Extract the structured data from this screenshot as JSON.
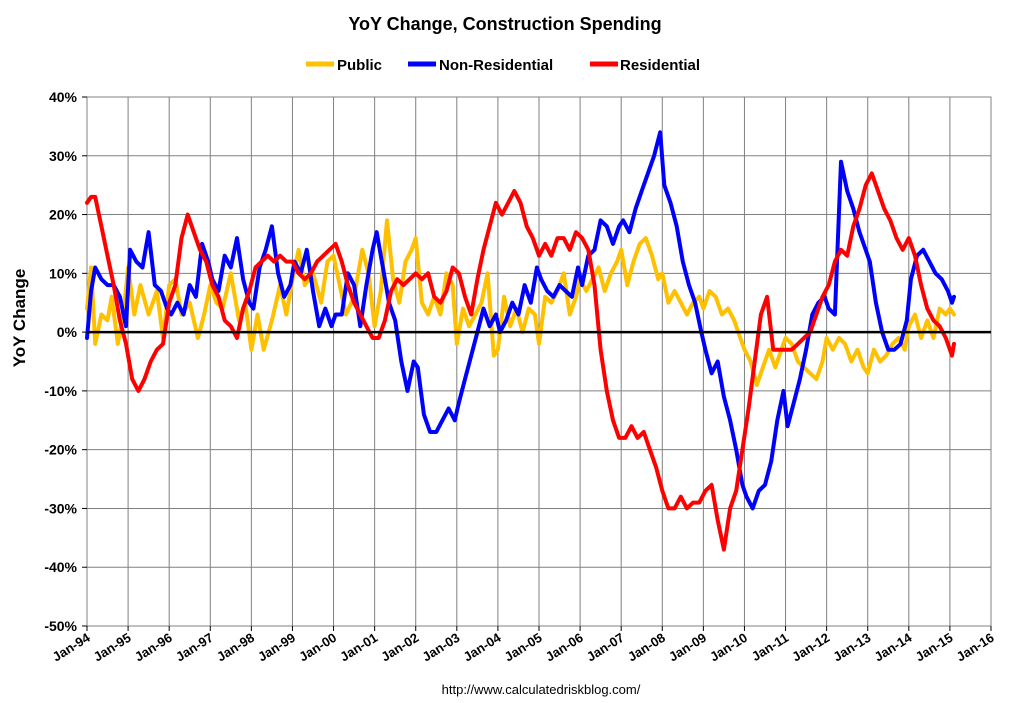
{
  "chart_data": {
    "type": "line",
    "title": "YoY Change,  Construction Spending",
    "ylabel": "YoY Change",
    "xlabel": "",
    "source": "http://www.calculatedriskblog.com/",
    "ylim": [
      -50,
      40
    ],
    "yticks": [
      40,
      30,
      20,
      10,
      0,
      -10,
      -20,
      -30,
      -40,
      -50
    ],
    "ytick_labels": [
      "40%",
      "30%",
      "20%",
      "10%",
      "0%",
      "-10%",
      "-20%",
      "-30%",
      "-40%",
      "-50%"
    ],
    "xlim": [
      1994,
      2016
    ],
    "xticks": [
      1994,
      1995,
      1996,
      1997,
      1998,
      1999,
      2000,
      2001,
      2002,
      2003,
      2004,
      2005,
      2006,
      2007,
      2008,
      2009,
      2010,
      2011,
      2012,
      2013,
      2014,
      2015,
      2016
    ],
    "xtick_labels": [
      "Jan-94",
      "Jan-95",
      "Jan-96",
      "Jan-97",
      "Jan-98",
      "Jan-99",
      "Jan-00",
      "Jan-01",
      "Jan-02",
      "Jan-03",
      "Jan-04",
      "Jan-05",
      "Jan-06",
      "Jan-07",
      "Jan-08",
      "Jan-09",
      "Jan-10",
      "Jan-11",
      "Jan-12",
      "Jan-13",
      "Jan-14",
      "Jan-15",
      "Jan-16"
    ],
    "grid": true,
    "legend_position": "top-center",
    "series": [
      {
        "name": "Public",
        "color": "#FFC000",
        "x": [
          1994.0,
          1994.1,
          1994.2,
          1994.35,
          1994.5,
          1994.6,
          1994.75,
          1994.9,
          1995.0,
          1995.15,
          1995.3,
          1995.5,
          1995.7,
          1995.85,
          1996.0,
          1996.15,
          1996.3,
          1996.5,
          1996.7,
          1996.85,
          1997.0,
          1997.15,
          1997.3,
          1997.5,
          1997.7,
          1997.85,
          1998.0,
          1998.15,
          1998.3,
          1998.5,
          1998.7,
          1998.85,
          1999.0,
          1999.15,
          1999.3,
          1999.5,
          1999.7,
          1999.85,
          2000.0,
          2000.15,
          2000.3,
          2000.5,
          2000.7,
          2000.85,
          2001.0,
          2001.15,
          2001.3,
          2001.45,
          2001.6,
          2001.75,
          2001.9,
          2002.0,
          2002.15,
          2002.3,
          2002.45,
          2002.6,
          2002.75,
          2002.9,
          2003.0,
          2003.15,
          2003.3,
          2003.45,
          2003.6,
          2003.75,
          2003.9,
          2004.0,
          2004.15,
          2004.3,
          2004.45,
          2004.6,
          2004.75,
          2004.9,
          2005.0,
          2005.15,
          2005.3,
          2005.45,
          2005.6,
          2005.75,
          2005.9,
          2006.0,
          2006.15,
          2006.3,
          2006.45,
          2006.6,
          2006.75,
          2006.9,
          2007.0,
          2007.15,
          2007.3,
          2007.45,
          2007.6,
          2007.75,
          2007.9,
          2008.0,
          2008.15,
          2008.3,
          2008.45,
          2008.6,
          2008.75,
          2008.9,
          2009.0,
          2009.15,
          2009.3,
          2009.45,
          2009.6,
          2009.75,
          2009.9,
          2010.0,
          2010.15,
          2010.3,
          2010.45,
          2010.6,
          2010.75,
          2010.9,
          2011.0,
          2011.15,
          2011.3,
          2011.45,
          2011.6,
          2011.75,
          2011.9,
          2012.0,
          2012.15,
          2012.3,
          2012.45,
          2012.6,
          2012.75,
          2012.9,
          2013.0,
          2013.15,
          2013.3,
          2013.45,
          2013.6,
          2013.75,
          2013.9,
          2014.0,
          2014.15,
          2014.3,
          2014.45,
          2014.6,
          2014.75,
          2014.9,
          2015.0,
          2015.1
        ],
        "values": [
          4,
          11,
          -2,
          3,
          2,
          6,
          -2,
          4,
          11,
          3,
          8,
          3,
          7,
          -1,
          8,
          9,
          3,
          5,
          -1,
          3,
          8,
          5,
          4,
          10,
          2,
          5,
          -3,
          3,
          -3,
          2,
          8,
          3,
          9,
          14,
          8,
          10,
          5,
          12,
          13,
          8,
          3,
          6,
          14,
          10,
          1,
          7,
          19,
          9,
          5,
          12,
          14,
          16,
          5,
          3,
          6,
          3,
          10,
          8,
          -2,
          4,
          1,
          3,
          5,
          10,
          -4,
          -3,
          6,
          1,
          4,
          0,
          4,
          3,
          -2,
          6,
          5,
          7,
          10,
          3,
          6,
          9,
          7,
          9,
          11,
          7,
          10,
          12,
          14,
          8,
          12,
          15,
          16,
          13,
          9,
          10,
          5,
          7,
          5,
          3,
          5,
          6,
          4,
          7,
          6,
          3,
          4,
          2,
          -1,
          -3,
          -5,
          -9,
          -6,
          -3,
          -6,
          -3,
          -1,
          -2,
          -5,
          -6,
          -7,
          -8,
          -5,
          -1,
          -3,
          -1,
          -2,
          -5,
          -3,
          -6,
          -7,
          -3,
          -5,
          -4,
          -2,
          -1,
          -3,
          1,
          3,
          -1,
          2,
          -1,
          4,
          3,
          4,
          3
        ],
        "legend_label": "Public"
      },
      {
        "name": "Non-Residential",
        "color": "#0000FF",
        "x": [
          1994.0,
          1994.1,
          1994.2,
          1994.35,
          1994.5,
          1994.65,
          1994.8,
          1994.95,
          1995.05,
          1995.2,
          1995.35,
          1995.5,
          1995.65,
          1995.8,
          1995.95,
          1996.05,
          1996.2,
          1996.35,
          1996.5,
          1996.65,
          1996.8,
          1996.95,
          1997.05,
          1997.2,
          1997.35,
          1997.5,
          1997.65,
          1997.8,
          1997.95,
          1998.05,
          1998.2,
          1998.35,
          1998.5,
          1998.65,
          1998.8,
          1998.95,
          1999.05,
          1999.2,
          1999.35,
          1999.5,
          1999.65,
          1999.8,
          1999.95,
          2000.05,
          2000.2,
          2000.35,
          2000.5,
          2000.65,
          2000.8,
          2000.95,
          2001.05,
          2001.2,
          2001.35,
          2001.5,
          2001.65,
          2001.8,
          2001.95,
          2002.05,
          2002.2,
          2002.35,
          2002.5,
          2002.65,
          2002.8,
          2002.95,
          2003.05,
          2003.2,
          2003.35,
          2003.5,
          2003.65,
          2003.8,
          2003.95,
          2004.05,
          2004.2,
          2004.35,
          2004.5,
          2004.65,
          2004.8,
          2004.95,
          2005.05,
          2005.2,
          2005.35,
          2005.5,
          2005.65,
          2005.8,
          2005.95,
          2006.05,
          2006.2,
          2006.35,
          2006.5,
          2006.65,
          2006.8,
          2006.95,
          2007.05,
          2007.2,
          2007.35,
          2007.5,
          2007.65,
          2007.8,
          2007.95,
          2008.05,
          2008.2,
          2008.35,
          2008.5,
          2008.65,
          2008.8,
          2008.95,
          2009.05,
          2009.2,
          2009.35,
          2009.5,
          2009.65,
          2009.8,
          2009.95,
          2010.05,
          2010.2,
          2010.35,
          2010.5,
          2010.65,
          2010.8,
          2010.95,
          2011.05,
          2011.2,
          2011.35,
          2011.5,
          2011.65,
          2011.8,
          2011.95,
          2012.05,
          2012.2,
          2012.35,
          2012.5,
          2012.65,
          2012.8,
          2012.95,
          2013.05,
          2013.2,
          2013.35,
          2013.5,
          2013.65,
          2013.8,
          2013.95,
          2014.05,
          2014.2,
          2014.35,
          2014.5,
          2014.65,
          2014.8,
          2014.95,
          2015.05,
          2015.1
        ],
        "values": [
          -1,
          7,
          11,
          9,
          8,
          8,
          6,
          1,
          14,
          12,
          11,
          17,
          8,
          7,
          4,
          3,
          5,
          3,
          8,
          6,
          15,
          12,
          9,
          7,
          13,
          11,
          16,
          9,
          5,
          4,
          11,
          14,
          18,
          10,
          6,
          8,
          12,
          10,
          14,
          7,
          1,
          4,
          1,
          3,
          3,
          10,
          8,
          1,
          8,
          14,
          17,
          11,
          5,
          2,
          -5,
          -10,
          -5,
          -6,
          -14,
          -17,
          -17,
          -15,
          -13,
          -15,
          -12,
          -8,
          -4,
          0,
          4,
          1,
          3,
          0,
          2,
          5,
          3,
          8,
          5,
          11,
          9,
          7,
          6,
          8,
          7,
          6,
          11,
          8,
          13,
          14,
          19,
          18,
          15,
          18,
          19,
          17,
          21,
          24,
          27,
          30,
          34,
          25,
          22,
          18,
          12,
          8,
          5,
          0,
          -3,
          -7,
          -5,
          -11,
          -15,
          -20,
          -26,
          -28,
          -30,
          -27,
          -26,
          -22,
          -15,
          -10,
          -16,
          -12,
          -8,
          -3,
          3,
          5,
          6,
          4,
          3,
          29,
          24,
          21,
          17,
          14,
          12,
          5,
          0,
          -3,
          -3,
          -2,
          2,
          9,
          13,
          14,
          12,
          10,
          9,
          7,
          5,
          6
        ],
        "legend_label": "Non-Residential"
      },
      {
        "name": "Residential",
        "color": "#FF0000",
        "x": [
          1994.0,
          1994.1,
          1994.2,
          1994.35,
          1994.5,
          1994.65,
          1994.8,
          1994.95,
          1995.1,
          1995.25,
          1995.4,
          1995.55,
          1995.7,
          1995.85,
          1996.0,
          1996.15,
          1996.3,
          1996.45,
          1996.6,
          1996.75,
          1996.9,
          1997.05,
          1997.2,
          1997.35,
          1997.5,
          1997.65,
          1997.8,
          1997.95,
          1998.1,
          1998.25,
          1998.4,
          1998.55,
          1998.7,
          1998.85,
          1999.0,
          1999.15,
          1999.3,
          1999.45,
          1999.6,
          1999.75,
          1999.9,
          2000.05,
          2000.2,
          2000.35,
          2000.5,
          2000.65,
          2000.8,
          2000.95,
          2001.1,
          2001.25,
          2001.4,
          2001.55,
          2001.7,
          2001.85,
          2002.0,
          2002.15,
          2002.3,
          2002.45,
          2002.6,
          2002.75,
          2002.9,
          2003.05,
          2003.2,
          2003.35,
          2003.5,
          2003.65,
          2003.8,
          2003.95,
          2004.1,
          2004.25,
          2004.4,
          2004.55,
          2004.7,
          2004.85,
          2005.0,
          2005.15,
          2005.3,
          2005.45,
          2005.6,
          2005.75,
          2005.9,
          2006.05,
          2006.2,
          2006.35,
          2006.5,
          2006.65,
          2006.8,
          2006.95,
          2007.1,
          2007.25,
          2007.4,
          2007.55,
          2007.7,
          2007.85,
          2008.0,
          2008.15,
          2008.3,
          2008.45,
          2008.6,
          2008.75,
          2008.9,
          2009.05,
          2009.2,
          2009.35,
          2009.5,
          2009.65,
          2009.8,
          2009.95,
          2010.1,
          2010.25,
          2010.4,
          2010.55,
          2010.7,
          2010.85,
          2011.0,
          2011.15,
          2011.3,
          2011.45,
          2011.6,
          2011.75,
          2011.9,
          2012.05,
          2012.2,
          2012.35,
          2012.5,
          2012.65,
          2012.8,
          2012.95,
          2013.1,
          2013.25,
          2013.4,
          2013.55,
          2013.7,
          2013.85,
          2014.0,
          2014.15,
          2014.3,
          2014.45,
          2014.6,
          2014.75,
          2014.9,
          2015.05,
          2015.1
        ],
        "values": [
          22,
          23,
          23,
          18,
          13,
          8,
          2,
          -2,
          -8,
          -10,
          -8,
          -5,
          -3,
          -2,
          5,
          8,
          16,
          20,
          17,
          14,
          12,
          8,
          6,
          2,
          1,
          -1,
          4,
          7,
          11,
          12,
          13,
          12,
          13,
          12,
          12,
          10,
          9,
          10,
          12,
          13,
          14,
          15,
          12,
          8,
          5,
          3,
          1,
          -1,
          -1,
          2,
          7,
          9,
          8,
          9,
          10,
          9,
          10,
          6,
          5,
          7,
          11,
          10,
          6,
          3,
          9,
          14,
          18,
          22,
          20,
          22,
          24,
          22,
          18,
          16,
          13,
          15,
          13,
          16,
          16,
          14,
          17,
          16,
          14,
          8,
          -3,
          -10,
          -15,
          -18,
          -18,
          -16,
          -18,
          -17,
          -20,
          -23,
          -27,
          -30,
          -30,
          -28,
          -30,
          -29,
          -29,
          -27,
          -26,
          -32,
          -37,
          -30,
          -27,
          -20,
          -13,
          -5,
          3,
          6,
          -3,
          -3,
          -3,
          -3,
          -2,
          -1,
          0,
          3,
          6,
          8,
          12,
          14,
          13,
          18,
          21,
          25,
          27,
          24,
          21,
          19,
          16,
          14,
          16,
          13,
          8,
          4,
          2,
          1,
          -1,
          -4,
          -2
        ],
        "legend_label": "Residential"
      }
    ]
  }
}
